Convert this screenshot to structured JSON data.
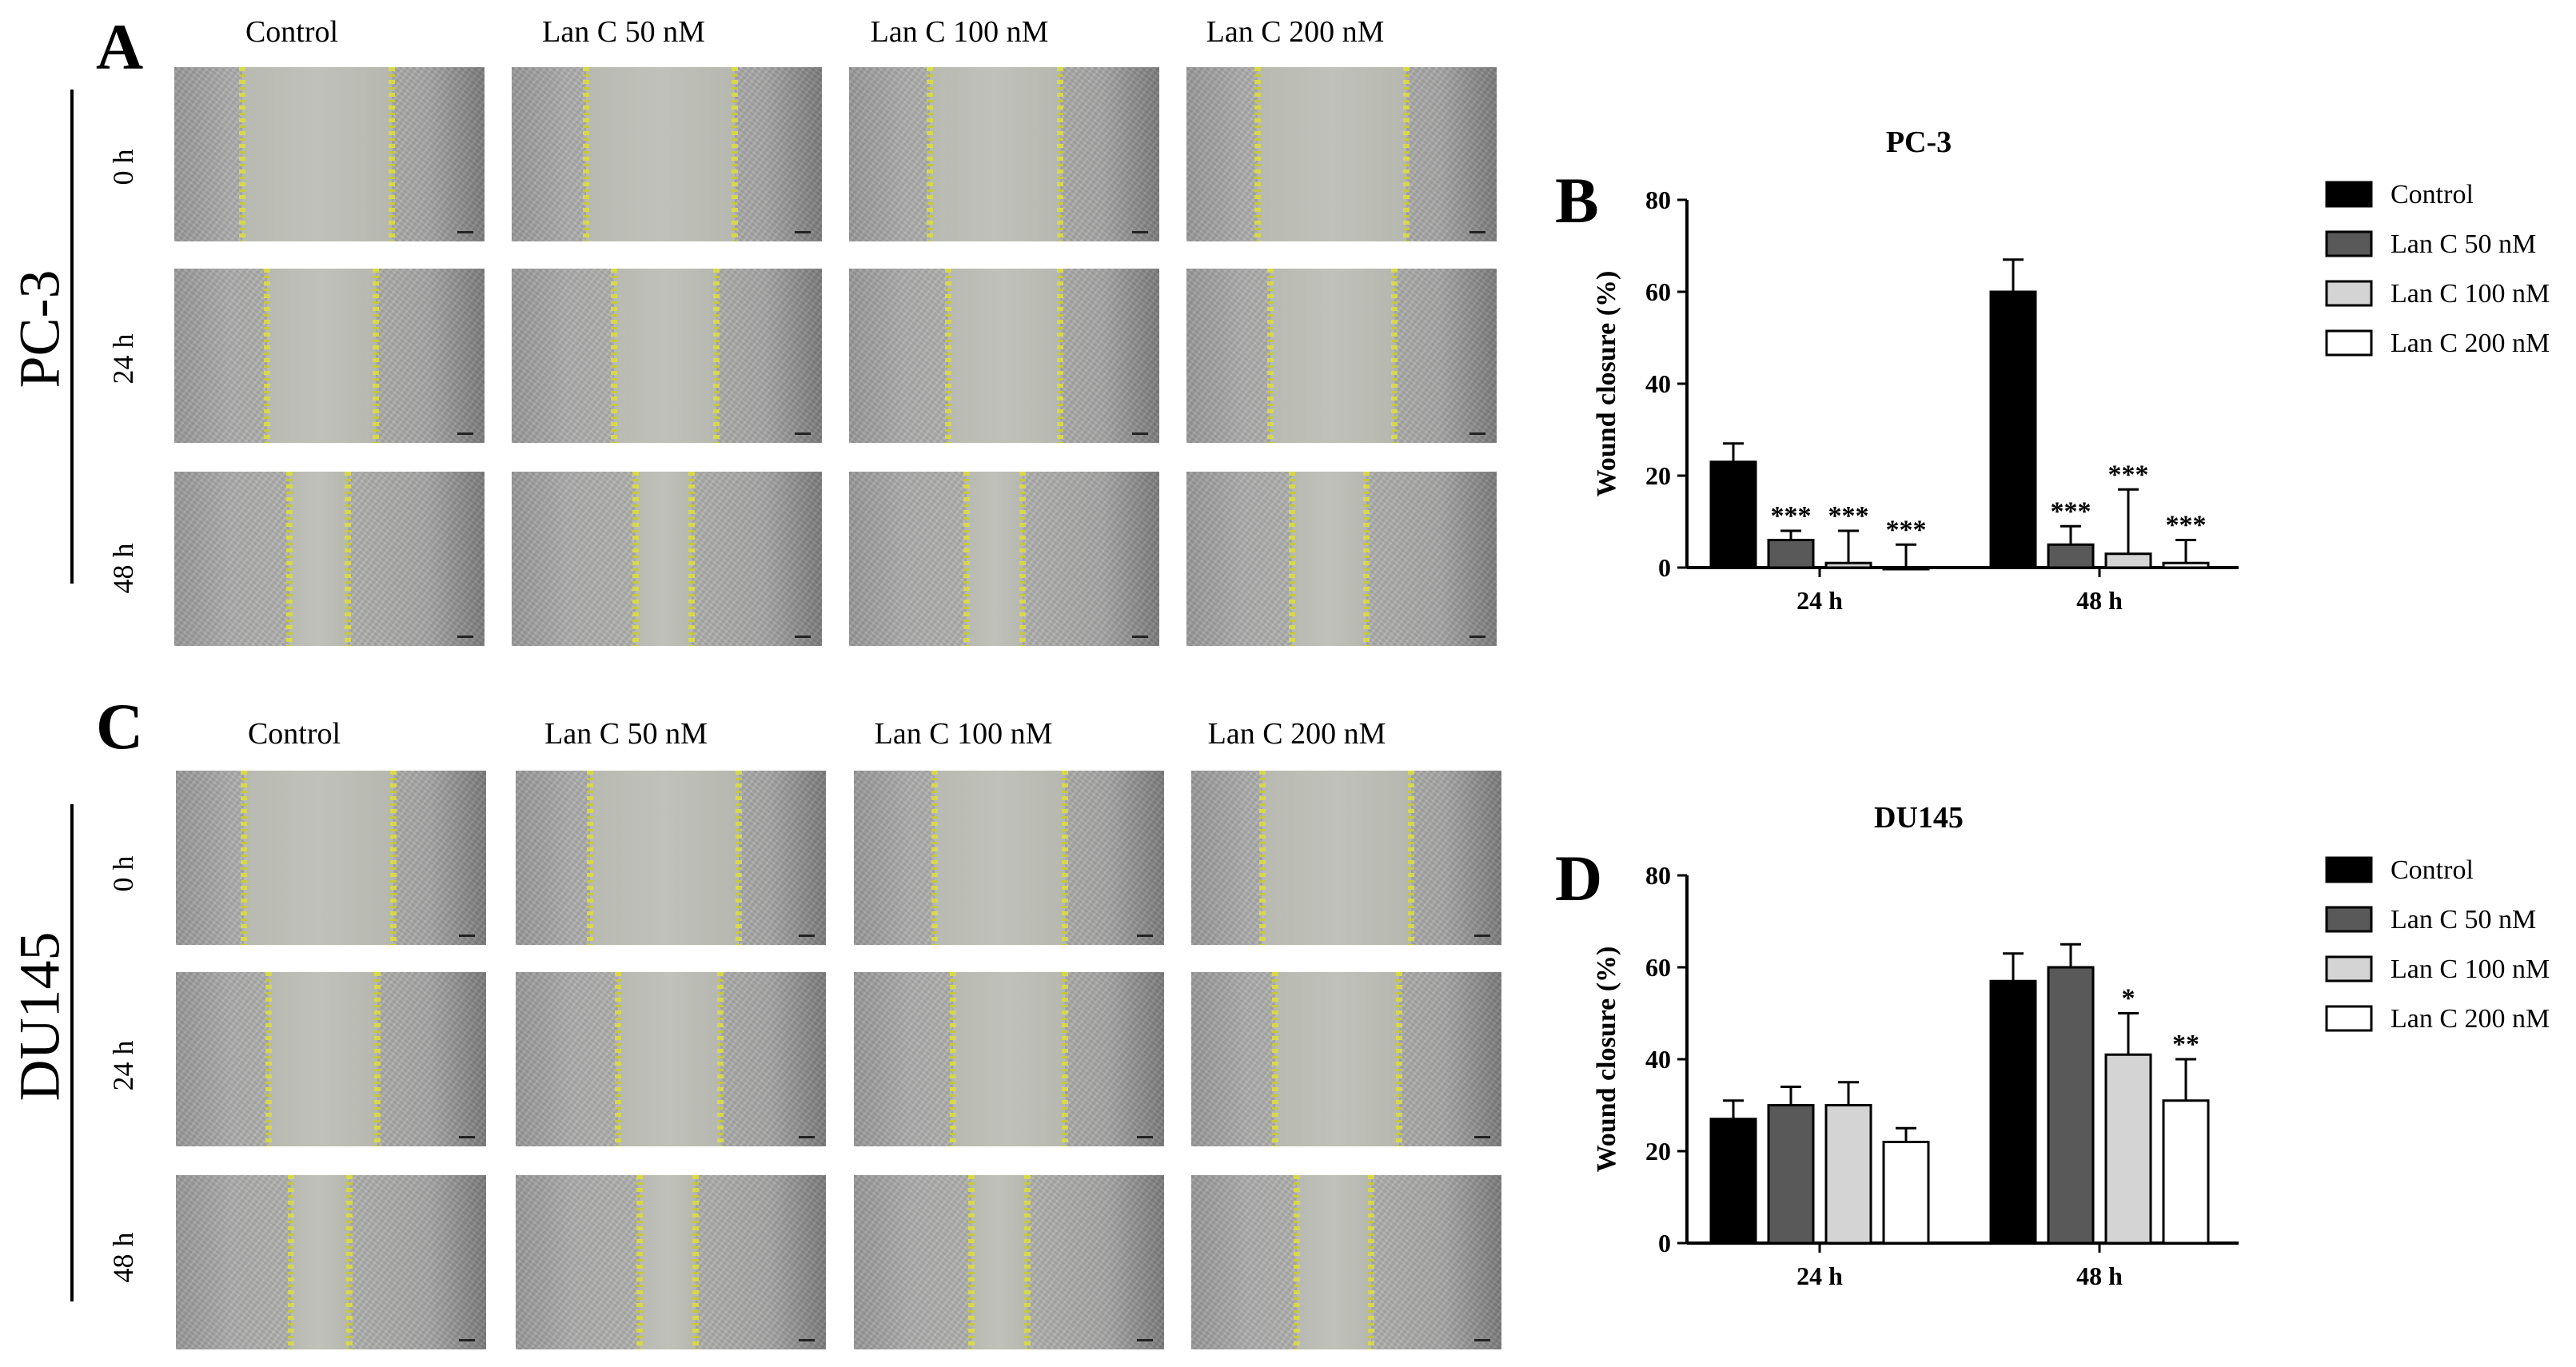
{
  "panels": {
    "A": "A",
    "B": "B",
    "C": "C",
    "D": "D"
  },
  "top_section": {
    "cell_line": "PC-3",
    "columns": [
      "Control",
      "Lan C  50 nM",
      "Lan C  100 nM",
      "Lan C  200 nM"
    ],
    "rows": [
      "0 h",
      "24 h",
      "48 h"
    ]
  },
  "bottom_section": {
    "cell_line": "DU145",
    "columns": [
      "Control",
      "Lan C  50 nM",
      "Lan C  100 nM",
      "Lan C  200 nM"
    ],
    "rows": [
      "0 h",
      "24 h",
      "48 h"
    ]
  },
  "chart_data": [
    {
      "type": "bar",
      "title": "PC-3",
      "ylabel": "Wound closure (%)",
      "xlabel": "",
      "ylim": [
        0,
        80
      ],
      "yticks": [
        0,
        20,
        40,
        60,
        80
      ],
      "categories": [
        "24 h",
        "48 h"
      ],
      "legend_position": "right",
      "series": [
        {
          "name": "Control",
          "color": "#000000",
          "values": [
            23,
            60
          ],
          "errors": [
            4,
            7
          ],
          "sig": [
            "",
            ""
          ]
        },
        {
          "name": "Lan C 50 nM",
          "color": "#595959",
          "values": [
            6,
            5
          ],
          "errors": [
            2,
            4
          ],
          "sig": [
            "***",
            "***"
          ]
        },
        {
          "name": "Lan C 100 nM",
          "color": "#d4d4d4",
          "values": [
            1,
            3
          ],
          "errors": [
            7,
            14
          ],
          "sig": [
            "***",
            "***"
          ]
        },
        {
          "name": "Lan C 200 nM",
          "color": "#ffffff",
          "values": [
            0,
            1
          ],
          "errors": [
            5,
            5
          ],
          "sig": [
            "***",
            "***"
          ]
        }
      ]
    },
    {
      "type": "bar",
      "title": "DU145",
      "ylabel": "Wound closure (%)",
      "xlabel": "",
      "ylim": [
        0,
        80
      ],
      "yticks": [
        0,
        20,
        40,
        60,
        80
      ],
      "categories": [
        "24 h",
        "48 h"
      ],
      "legend_position": "right",
      "series": [
        {
          "name": "Control",
          "color": "#000000",
          "values": [
            27,
            57
          ],
          "errors": [
            4,
            6
          ],
          "sig": [
            "",
            ""
          ]
        },
        {
          "name": "Lan C 50 nM",
          "color": "#595959",
          "values": [
            30,
            60
          ],
          "errors": [
            4,
            5
          ],
          "sig": [
            "",
            ""
          ]
        },
        {
          "name": "Lan C 100 nM",
          "color": "#d4d4d4",
          "values": [
            30,
            41
          ],
          "errors": [
            5,
            9
          ],
          "sig": [
            "",
            "*"
          ]
        },
        {
          "name": "Lan C 200 nM",
          "color": "#ffffff",
          "values": [
            22,
            31
          ],
          "errors": [
            3,
            9
          ],
          "sig": [
            "",
            "**"
          ]
        }
      ]
    }
  ]
}
